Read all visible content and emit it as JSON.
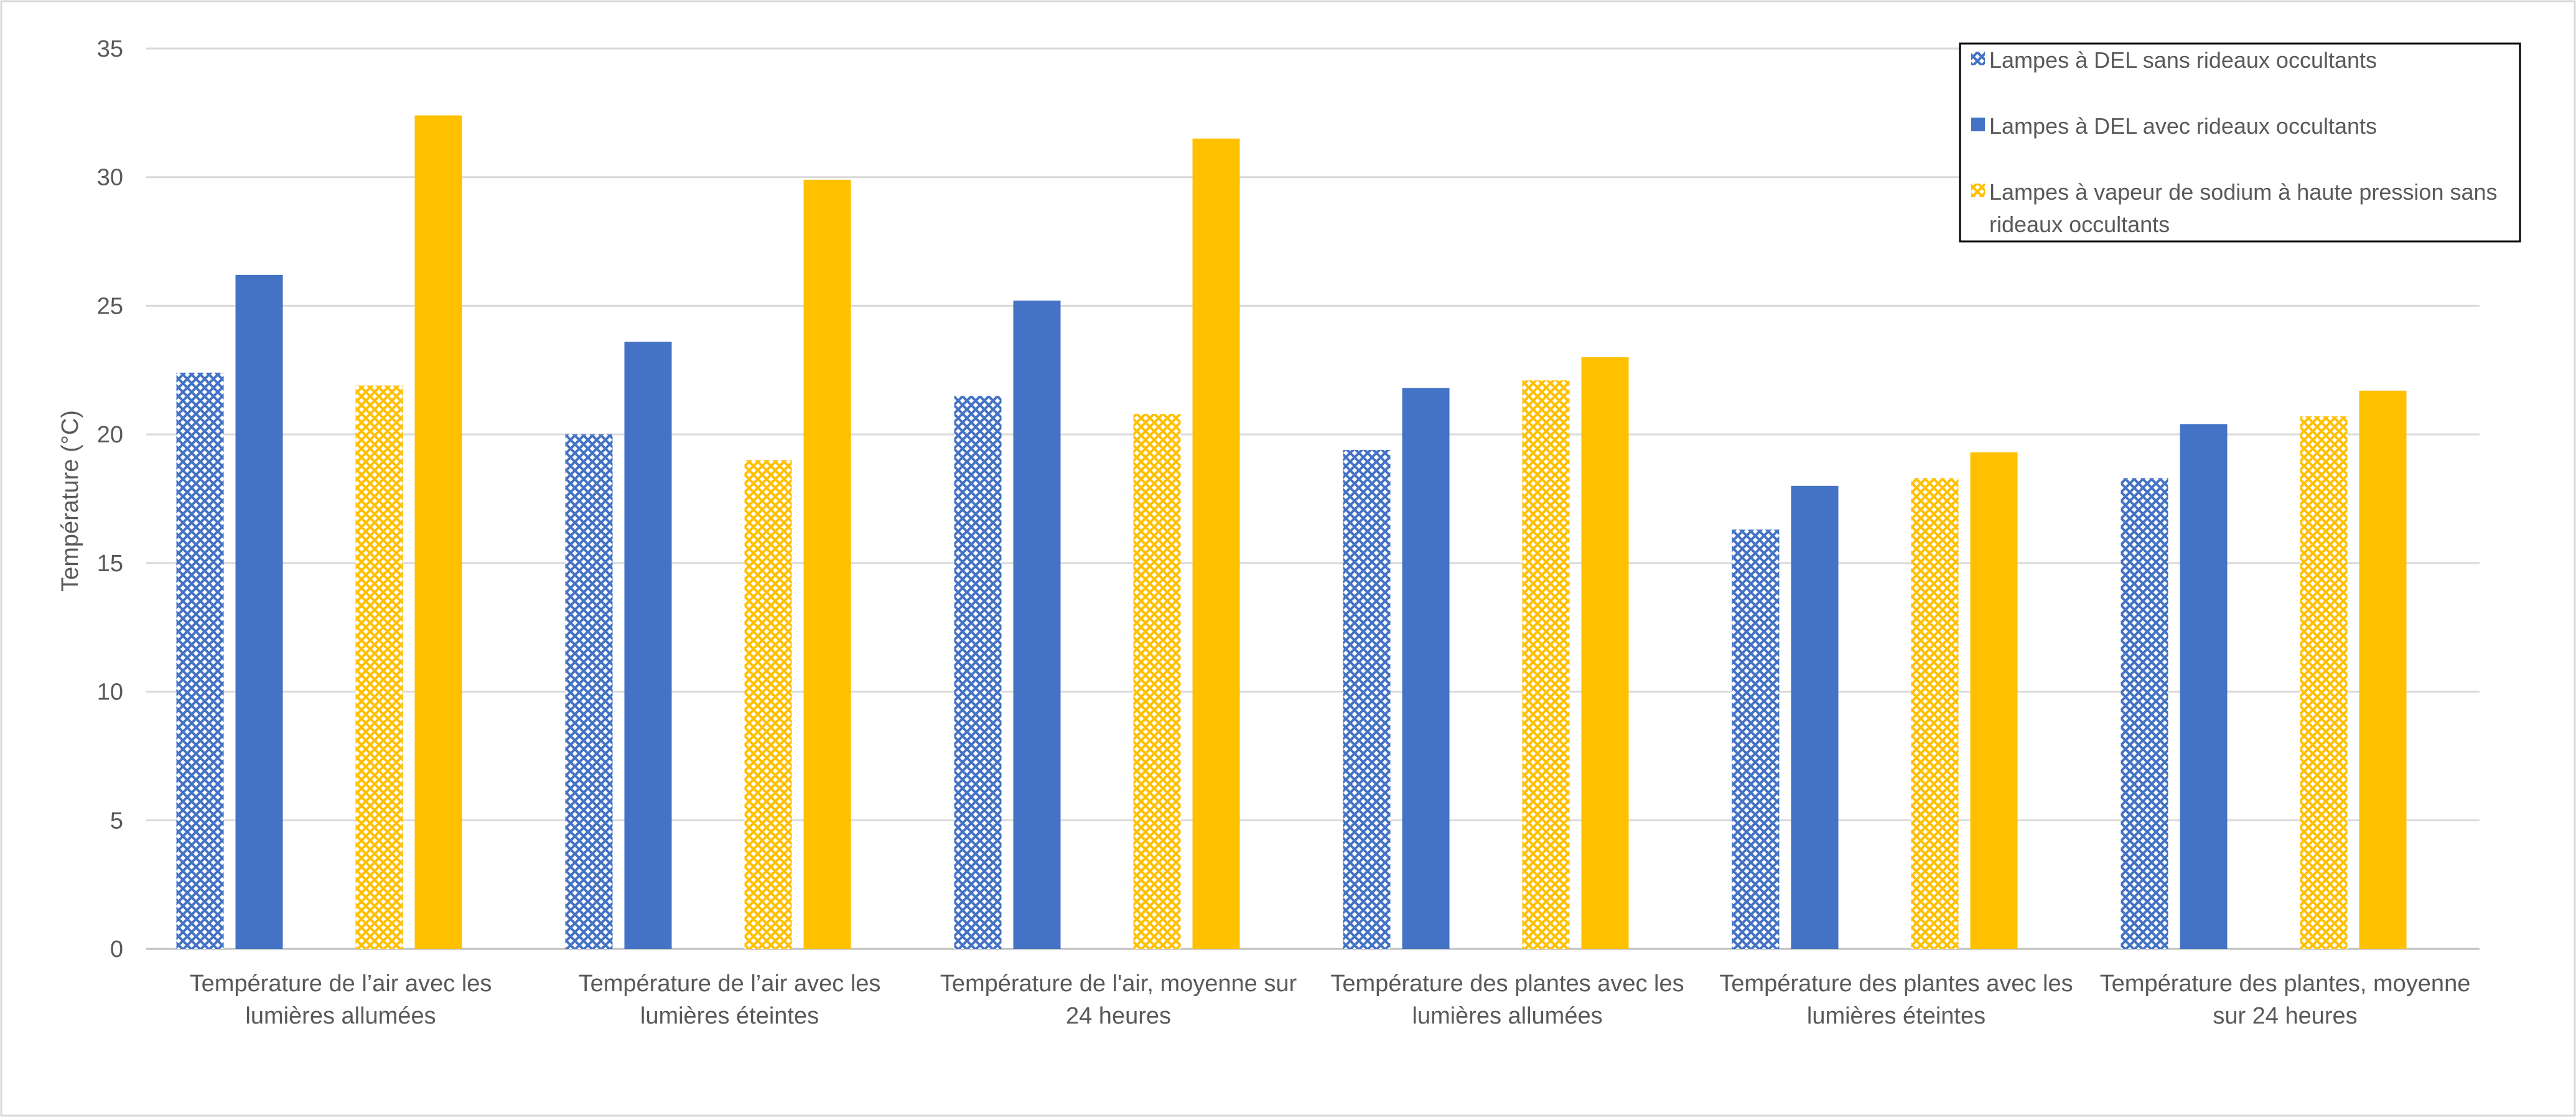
{
  "chart_data": {
    "type": "bar",
    "title": "",
    "ylabel": "Température (°C)",
    "xlabel": "",
    "ylim": [
      0,
      35
    ],
    "yticks": [
      0,
      5,
      10,
      15,
      20,
      25,
      30,
      35
    ],
    "grid": true,
    "legend_position": "top-right",
    "categories": [
      [
        "Température de l’air avec les",
        "lumières allumées"
      ],
      [
        "Température de l’air avec les",
        "lumières éteintes"
      ],
      [
        "Température de l'air, moyenne sur",
        "24 heures"
      ],
      [
        "Température des plantes avec les",
        "lumières allumées"
      ],
      [
        "Température des plantes avec les",
        "lumières éteintes"
      ],
      [
        "Température des plantes, moyenne",
        "sur 24 heures"
      ]
    ],
    "series": [
      {
        "name": "Lampes à DEL sans rideaux occultants",
        "color": "#4472C4",
        "pattern": "hatched",
        "values": [
          22.4,
          20.0,
          21.5,
          19.4,
          16.3,
          18.3
        ]
      },
      {
        "name": "Lampes à DEL avec rideaux occultants",
        "color": "#4472C4",
        "pattern": "solid",
        "values": [
          26.2,
          23.6,
          25.2,
          21.8,
          18.0,
          20.4
        ]
      },
      {
        "name": "Lampes à vapeur de sodium à haute pression sans rideaux occultants",
        "legend_lines": [
          "Lampes à vapeur de sodium à haute pression sans",
          "rideaux occultants"
        ],
        "color": "#FFC000",
        "pattern": "hatched",
        "values": [
          21.9,
          19.0,
          20.8,
          22.1,
          18.3,
          20.7
        ]
      },
      {
        "name": "",
        "color": "#FFC000",
        "pattern": "solid",
        "values": [
          32.4,
          29.9,
          31.5,
          23.0,
          19.3,
          21.7
        ]
      }
    ]
  }
}
